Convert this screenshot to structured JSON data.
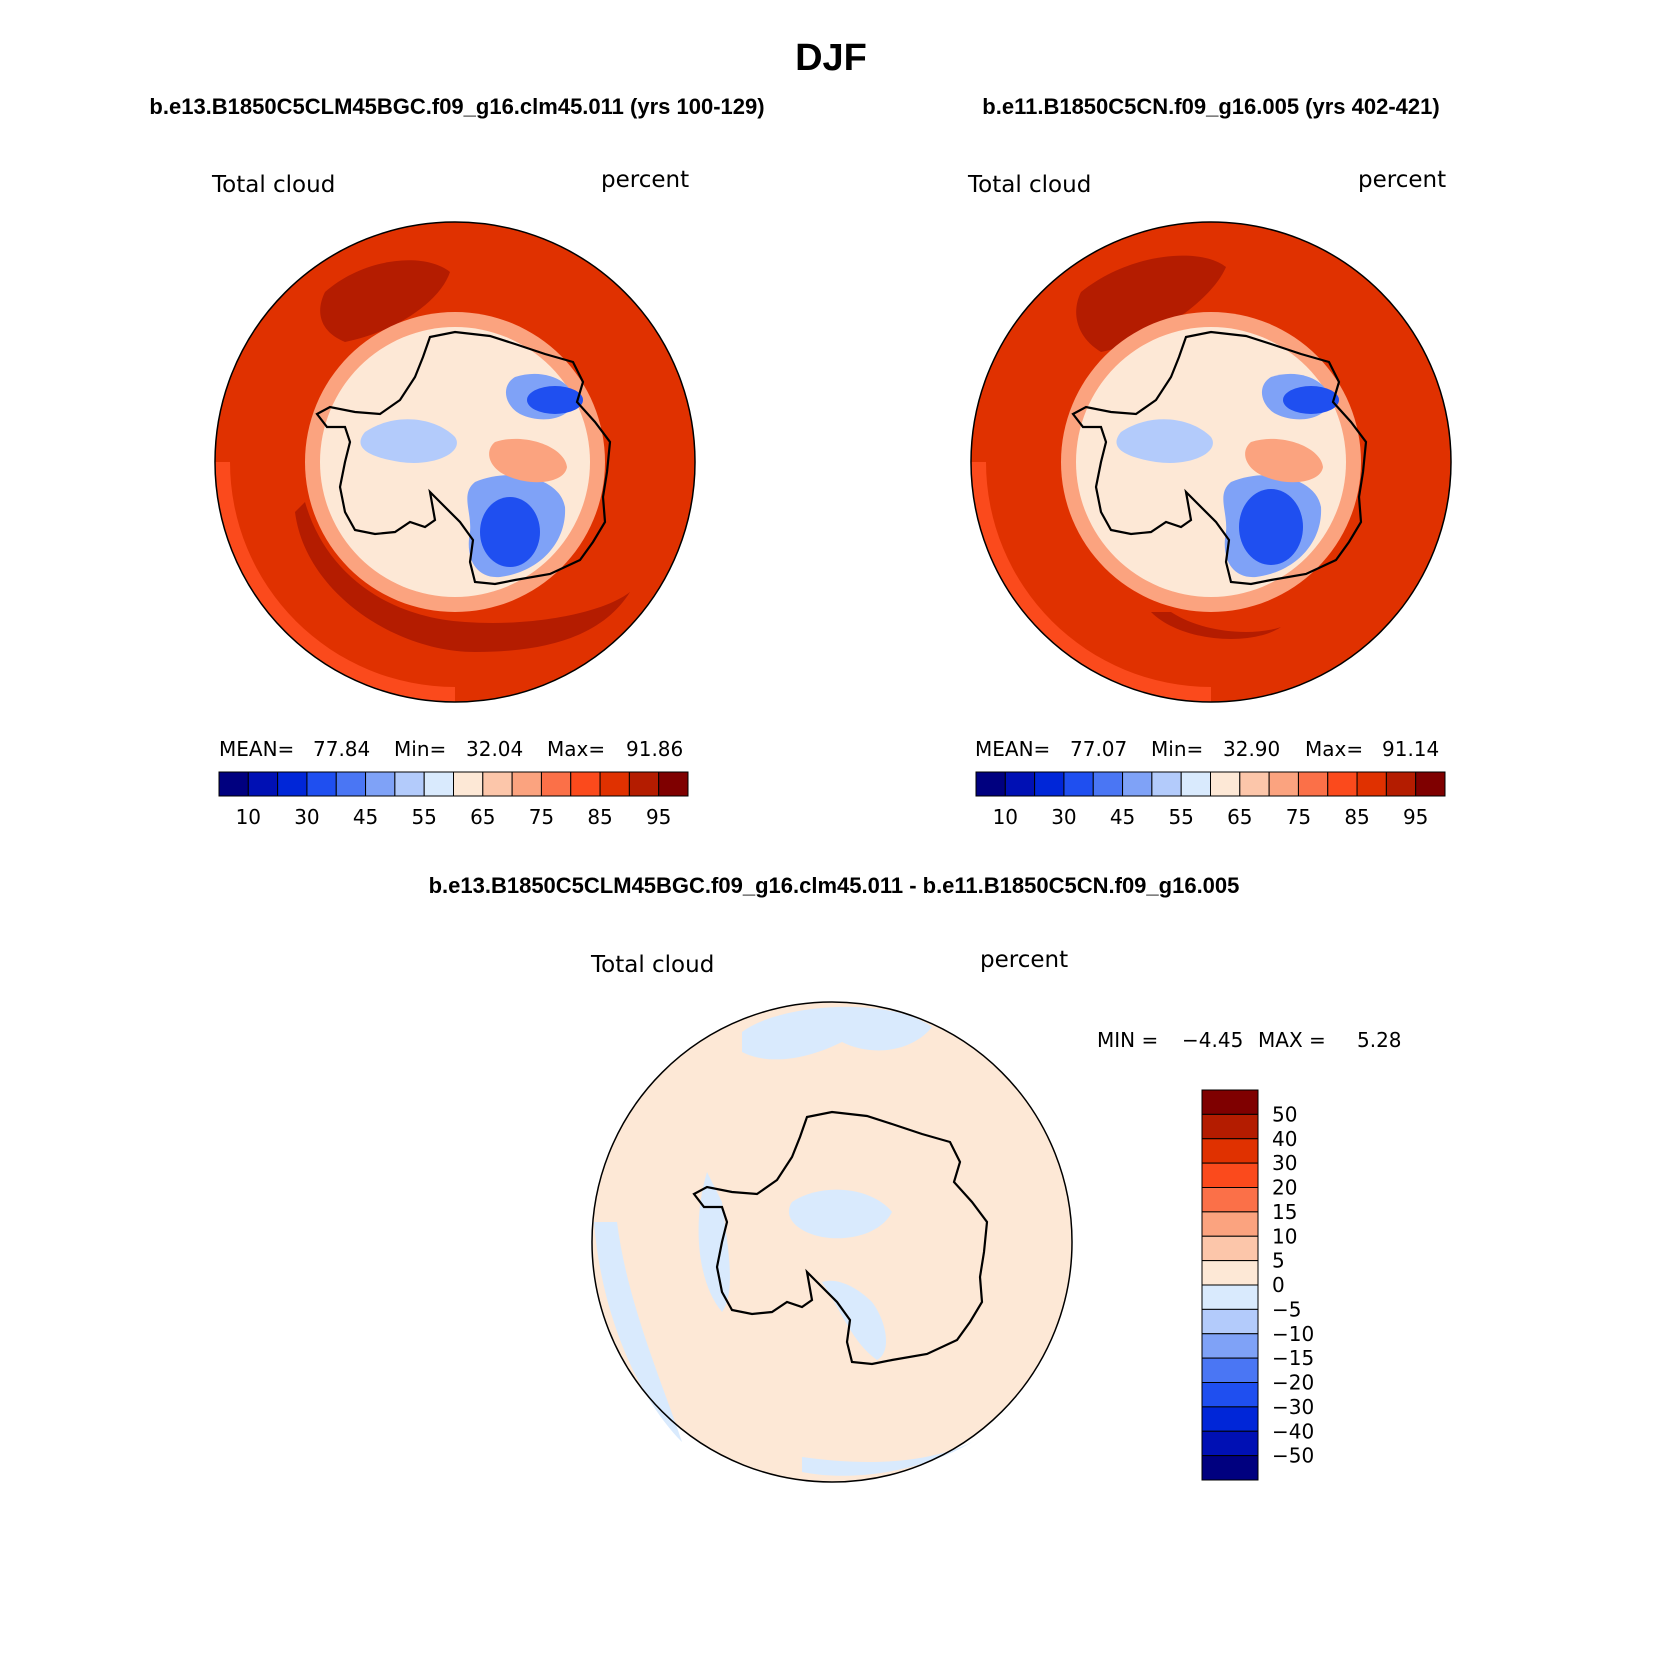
{
  "figure": {
    "season": "DJF",
    "panel1_title": "b.e13.B1850C5CLM45BGC.f09_g16.clm45.011 (yrs 100-129)",
    "panel2_title": "b.e11.B1850C5CN.f09_g16.005 (yrs 402-421)",
    "diff_title": "b.e13.B1850C5CLM45BGC.f09_g16.clm45.011 - b.e11.B1850C5CN.f09_g16.005"
  },
  "panel1": {
    "variable": "Total cloud",
    "units": "percent",
    "stats": {
      "mean_label": "MEAN=",
      "mean": "77.84",
      "min_label": "Min=",
      "min": "32.04",
      "max_label": "Max=",
      "max": "91.86"
    }
  },
  "panel2": {
    "variable": "Total cloud",
    "units": "percent",
    "stats": {
      "mean_label": "MEAN=",
      "mean": "77.07",
      "min_label": "Min=",
      "min": "32.90",
      "max_label": "Max=",
      "max": "91.14"
    }
  },
  "diff": {
    "variable": "Total cloud",
    "units": "percent",
    "stats": {
      "min_label": "MIN =",
      "min": "−4.45",
      "max_label": "MAX =",
      "max": "5.28"
    }
  },
  "colorbar_abs": {
    "colors": [
      "#00007f",
      "#0010b4",
      "#0026d8",
      "#1f4ff0",
      "#4a76f4",
      "#7fa2f7",
      "#b3cbfb",
      "#d9eafd",
      "#fde8d6",
      "#fcc6aa",
      "#fba37f",
      "#fb7048",
      "#fb4a1c",
      "#e03100",
      "#b41c00",
      "#7f0000"
    ],
    "tick_labels": [
      "10",
      "30",
      "45",
      "55",
      "65",
      "75",
      "85",
      "95"
    ]
  },
  "colorbar_diff": {
    "colors": [
      "#7f0000",
      "#b41c00",
      "#e03100",
      "#fb4a1c",
      "#fb7048",
      "#fba37f",
      "#fcc6aa",
      "#fde8d6",
      "#d9eafd",
      "#b3cbfb",
      "#7fa2f7",
      "#4a76f4",
      "#1f4ff0",
      "#0026d8",
      "#0010b4",
      "#00007f"
    ],
    "tick_labels": [
      "50",
      "40",
      "30",
      "20",
      "15",
      "10",
      "5",
      "0",
      "−5",
      "−10",
      "−15",
      "−20",
      "−30",
      "−40",
      "−50"
    ]
  },
  "map_colors": {
    "ocean_high": "#b41c00",
    "ocean": "#e03100",
    "ocean_edge": "#fb4a1c",
    "coast_band": "#fba37f",
    "ice_light": "#fde8d6",
    "ice_blue": "#b3cbfb",
    "ice_mid": "#7fa2f7",
    "ice_dark": "#1f4ff0",
    "diff_pos": "#fde8d6",
    "diff_neg": "#d9eafd"
  }
}
